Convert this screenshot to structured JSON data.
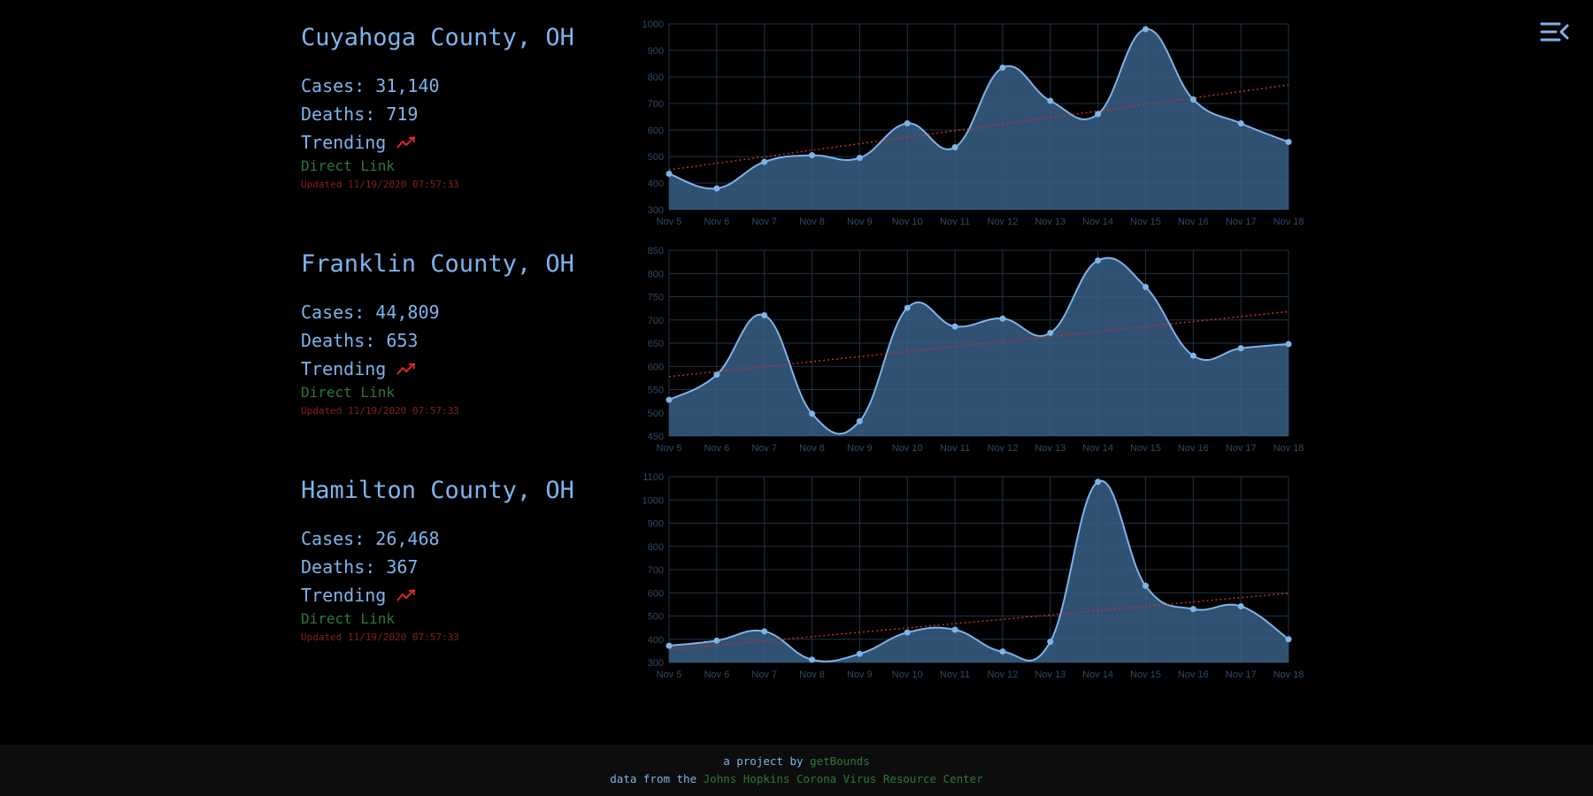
{
  "colors": {
    "background": "#000000",
    "accent": "#7db4ea",
    "link": "#2b7a3a",
    "updated": "#8b1e1e",
    "trend_line": "#c0302e",
    "grid": "#1e3448",
    "area_fill": "#3a5f86",
    "axis_text": "#2f4a66"
  },
  "menu": {
    "icon": "menu-collapse-icon"
  },
  "counties": [
    {
      "name": "Cuyahoga County, OH",
      "cases": "Cases: 31,140",
      "deaths": "Deaths: 719",
      "trending": "Trending",
      "trend_icon": "trending-up-icon",
      "link": "Direct Link",
      "updated": "Updated 11/19/2020 07:57:33"
    },
    {
      "name": "Franklin County, OH",
      "cases": "Cases: 44,809",
      "deaths": "Deaths: 653",
      "trending": "Trending",
      "trend_icon": "trending-up-icon",
      "link": "Direct Link",
      "updated": "Updated 11/19/2020 07:57:33"
    },
    {
      "name": "Hamilton County, OH",
      "cases": "Cases: 26,468",
      "deaths": "Deaths: 367",
      "trending": "Trending",
      "trend_icon": "trending-up-icon",
      "link": "Direct Link",
      "updated": "Updated 11/19/2020 07:57:33"
    }
  ],
  "chart_data": [
    {
      "type": "area",
      "categories": [
        "Nov 5",
        "Nov 6",
        "Nov 7",
        "Nov 8",
        "Nov 9",
        "Nov 10",
        "Nov 11",
        "Nov 12",
        "Nov 13",
        "Nov 14",
        "Nov 15",
        "Nov 16",
        "Nov 17",
        "Nov 18"
      ],
      "values": [
        435,
        380,
        480,
        505,
        495,
        625,
        535,
        835,
        710,
        660,
        980,
        715,
        625,
        555
      ],
      "trend": [
        450,
        770
      ],
      "ylim": [
        300,
        1000
      ],
      "yticks": [
        300,
        400,
        500,
        600,
        700,
        800,
        900,
        1000
      ],
      "grid": true,
      "legend": "none"
    },
    {
      "type": "area",
      "categories": [
        "Nov 5",
        "Nov 6",
        "Nov 7",
        "Nov 8",
        "Nov 9",
        "Nov 10",
        "Nov 11",
        "Nov 12",
        "Nov 13",
        "Nov 14",
        "Nov 15",
        "Nov 16",
        "Nov 17",
        "Nov 18"
      ],
      "values": [
        528,
        582,
        710,
        498,
        482,
        726,
        686,
        703,
        672,
        828,
        771,
        623,
        639,
        648
      ],
      "trend": [
        578,
        718
      ],
      "ylim": [
        450,
        850
      ],
      "yticks": [
        450,
        500,
        550,
        600,
        650,
        700,
        750,
        800,
        850
      ],
      "grid": true,
      "legend": "none"
    },
    {
      "type": "area",
      "categories": [
        "Nov 5",
        "Nov 6",
        "Nov 7",
        "Nov 8",
        "Nov 9",
        "Nov 10",
        "Nov 11",
        "Nov 12",
        "Nov 13",
        "Nov 14",
        "Nov 15",
        "Nov 16",
        "Nov 17",
        "Nov 18"
      ],
      "values": [
        372,
        394,
        434,
        312,
        337,
        429,
        441,
        347,
        389,
        1078,
        630,
        530,
        542,
        400
      ],
      "trend": [
        355,
        598
      ],
      "ylim": [
        300,
        1100
      ],
      "yticks": [
        300,
        400,
        500,
        600,
        700,
        800,
        900,
        1000,
        1100
      ],
      "grid": true,
      "legend": "none"
    }
  ],
  "footer": {
    "line1_prefix": "a project by",
    "line1_link": "getBounds",
    "line2_prefix": "data from the",
    "line2_link": "Johns Hopkins Corona Virus Resource Center"
  }
}
